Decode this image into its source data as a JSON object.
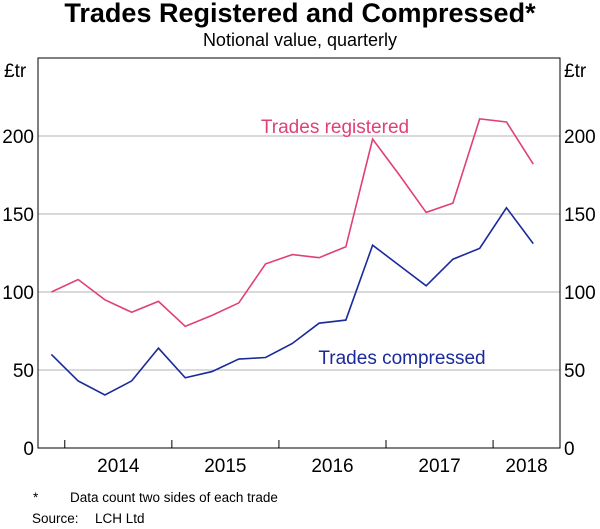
{
  "chart_data": {
    "type": "line",
    "title": "Trades Registered and Compressed*",
    "subtitle": "Notional value, quarterly",
    "y_unit_left": "£tr",
    "y_unit_right": "£tr",
    "ylim": [
      0,
      250
    ],
    "yticks": [
      0,
      50,
      100,
      150,
      200
    ],
    "x_start": 2013.75,
    "x_end": 2018.625,
    "year_labels": [
      "2014",
      "2015",
      "2016",
      "2017",
      "2018"
    ],
    "quarters": [
      "2013 Q4",
      "2014 Q1",
      "2014 Q2",
      "2014 Q3",
      "2014 Q4",
      "2015 Q1",
      "2015 Q2",
      "2015 Q3",
      "2015 Q4",
      "2016 Q1",
      "2016 Q2",
      "2016 Q3",
      "2016 Q4",
      "2017 Q1",
      "2017 Q2",
      "2017 Q3",
      "2017 Q4",
      "2018 Q1",
      "2018 Q2"
    ],
    "series": [
      {
        "name": "Trades registered",
        "color": "#e0407a",
        "values": [
          100,
          108,
          95,
          87,
          94,
          78,
          85,
          93,
          118,
          124,
          122,
          129,
          198,
          175,
          151,
          157,
          211,
          209,
          182
        ]
      },
      {
        "name": "Trades compressed",
        "color": "#1a2a9a",
        "values": [
          60,
          43,
          34,
          43,
          64,
          45,
          49,
          57,
          58,
          67,
          80,
          82,
          130,
          117,
          104,
          121,
          128,
          154,
          131
        ]
      }
    ],
    "grid": true,
    "notes": {
      "footnote_marker": "*",
      "footnote_text": "Data count two sides of each trade",
      "source_label": "Source:",
      "source_text": "LCH Ltd"
    }
  }
}
